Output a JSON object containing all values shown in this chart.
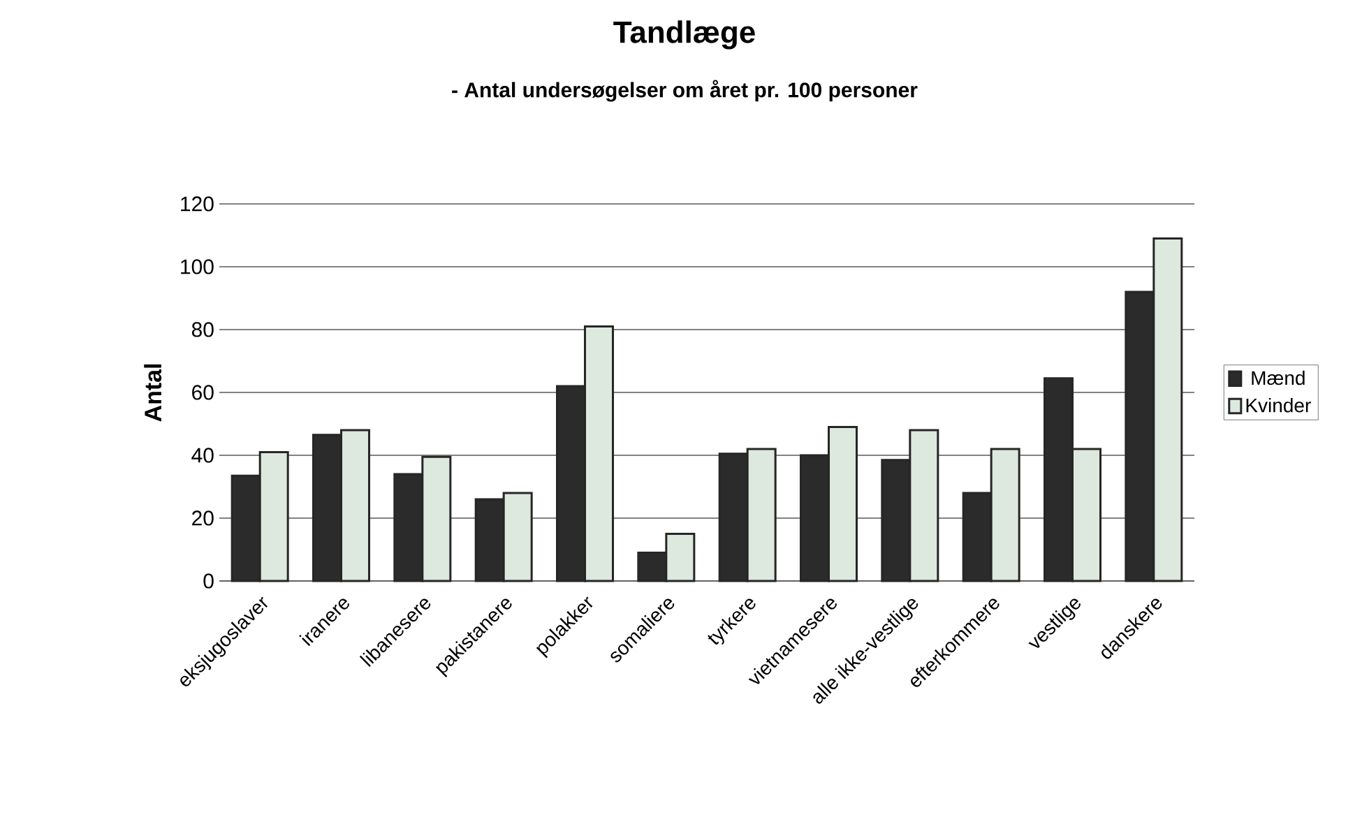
{
  "chart_data": {
    "type": "bar",
    "title": "Tandlæge",
    "subtitle": "- Antal undersøgelser om året pr. 100 personer",
    "ylabel": "Antal",
    "categories": [
      "eksjugoslaver",
      "iranere",
      "libanesere",
      "pakistanere",
      "polakker",
      "somaliere",
      "tyrkere",
      "vietnamesere",
      "alle ikke-vestlige",
      "efterkommere",
      "vestlige",
      "danskere"
    ],
    "series": [
      {
        "name": "Mænd",
        "color": "#2b2b2b",
        "values": [
          33.5,
          46.5,
          34,
          26,
          62,
          9,
          40.5,
          40,
          38.5,
          28,
          64.5,
          92
        ]
      },
      {
        "name": "Kvinder",
        "color": "#dde9df",
        "values": [
          41,
          48,
          39.5,
          28,
          81,
          15,
          42,
          49,
          48,
          42,
          42,
          109
        ]
      }
    ],
    "ylim": [
      0,
      120
    ],
    "yticks": [
      0,
      20,
      40,
      60,
      80,
      100,
      120
    ],
    "grid": "y",
    "legend": "right"
  }
}
